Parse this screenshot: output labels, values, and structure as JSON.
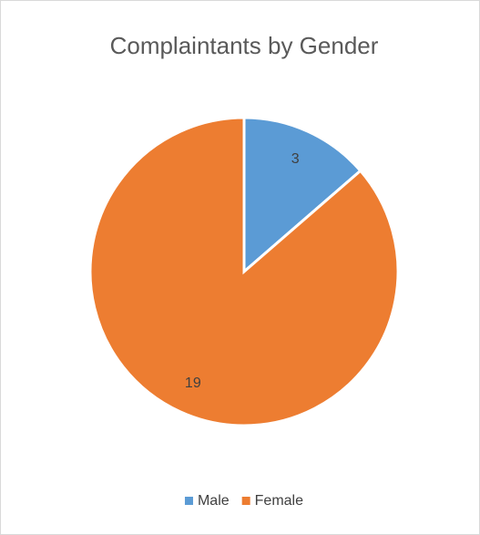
{
  "chart_data": {
    "type": "pie",
    "title": "Complaintants by Gender",
    "categories": [
      "Male",
      "Female"
    ],
    "values": [
      3,
      19
    ],
    "colors": [
      "#5b9bd5",
      "#ed7d31"
    ],
    "legend": "bottom"
  }
}
